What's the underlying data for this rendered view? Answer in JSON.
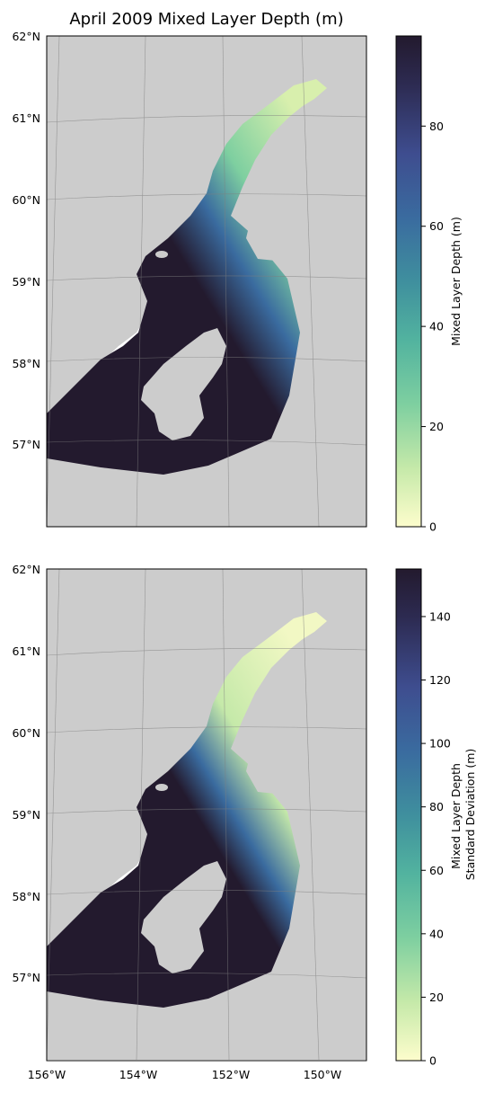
{
  "figure": {
    "title": "April 2009 Mixed Layer Depth (m)"
  },
  "panels": [
    {
      "lat_labels": [
        "62°N",
        "61°N",
        "60°N",
        "59°N",
        "58°N",
        "57°N"
      ],
      "colorbar": {
        "label_lines": [
          "Mixed Layer Depth (m)"
        ],
        "ticks": [
          "0",
          "20",
          "40",
          "60",
          "80"
        ],
        "range": [
          0,
          98
        ]
      }
    },
    {
      "lat_labels": [
        "62°N",
        "61°N",
        "60°N",
        "59°N",
        "58°N",
        "57°N"
      ],
      "lon_labels": [
        "156°W",
        "154°W",
        "152°W",
        "150°W"
      ],
      "colorbar": {
        "label_lines": [
          "Mixed Layer Depth",
          "Standard Deviation (m)"
        ],
        "ticks": [
          "0",
          "20",
          "40",
          "60",
          "80",
          "100",
          "120",
          "140"
        ],
        "range": [
          0,
          155
        ]
      }
    }
  ],
  "colors": {
    "land": "#cccccc",
    "ocean_background": "#ffffff",
    "graticule": "#7f7f7f",
    "colormap_deep": [
      "#fdfdcc",
      "#c5e9a9",
      "#7ecfa0",
      "#52b39f",
      "#3f8f9e",
      "#3a6b9f",
      "#3e4d8f",
      "#2d2b52",
      "#231a2e"
    ]
  }
}
